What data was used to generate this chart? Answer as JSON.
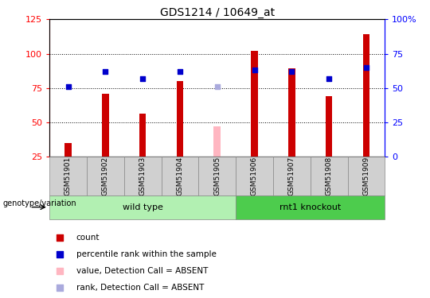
{
  "title": "GDS1214 / 10649_at",
  "samples": [
    "GSM51901",
    "GSM51902",
    "GSM51903",
    "GSM51904",
    "GSM51905",
    "GSM51906",
    "GSM51907",
    "GSM51908",
    "GSM51909"
  ],
  "count_values": [
    35,
    71,
    56,
    80,
    null,
    102,
    89,
    69,
    114
  ],
  "rank_values": [
    51,
    62,
    57,
    62,
    null,
    63,
    62,
    57,
    65
  ],
  "absent_count": [
    null,
    null,
    null,
    null,
    47,
    null,
    null,
    null,
    null
  ],
  "absent_rank": [
    null,
    null,
    null,
    null,
    51,
    null,
    null,
    null,
    null
  ],
  "ylim_left": [
    25,
    125
  ],
  "ylim_right": [
    0,
    100
  ],
  "yticks_left": [
    25,
    50,
    75,
    100,
    125
  ],
  "ytick_labels_left": [
    "25",
    "50",
    "75",
    "100",
    "125"
  ],
  "yticks_right": [
    0,
    25,
    50,
    75,
    100
  ],
  "ytick_labels_right": [
    "0",
    "25",
    "50",
    "75",
    "100%"
  ],
  "groups": [
    {
      "label": "wild type",
      "indices": [
        0,
        1,
        2,
        3,
        4
      ],
      "color": "#b2f0b2"
    },
    {
      "label": "rnt1 knockout",
      "indices": [
        5,
        6,
        7,
        8
      ],
      "color": "#4dcc4d"
    }
  ],
  "bar_color_present": "#cc0000",
  "bar_color_absent": "#ffb6c1",
  "rank_color_present": "#0000cc",
  "rank_color_absent": "#aaaadd",
  "bar_width": 0.18,
  "rank_dot_size": 18,
  "genotype_label": "genotype/variation",
  "legend_items": [
    {
      "label": "count",
      "color": "#cc0000",
      "marker": "s"
    },
    {
      "label": "percentile rank within the sample",
      "color": "#0000cc",
      "marker": "s"
    },
    {
      "label": "value, Detection Call = ABSENT",
      "color": "#ffb6c1",
      "marker": "s"
    },
    {
      "label": "rank, Detection Call = ABSENT",
      "color": "#aaaadd",
      "marker": "s"
    }
  ],
  "sample_box_color": "#d0d0d0",
  "plot_bg": "#ffffff"
}
